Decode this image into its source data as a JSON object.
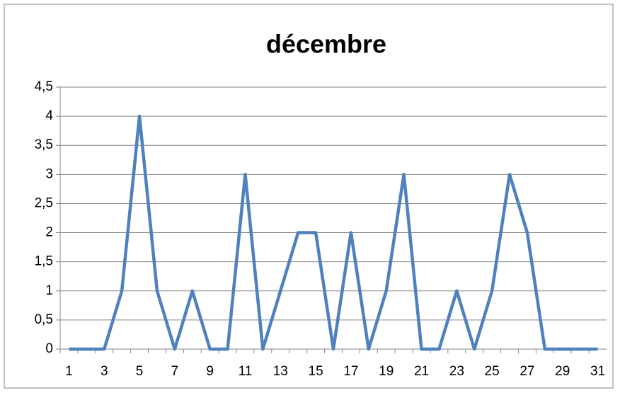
{
  "chart_data": {
    "type": "line",
    "title": "décembre",
    "categories": [
      "1",
      null,
      "3",
      null,
      "5",
      null,
      "7",
      null,
      "9",
      null,
      "11",
      null,
      "13",
      null,
      "15",
      null,
      "17",
      null,
      "19",
      null,
      "21",
      null,
      "23",
      null,
      "25",
      null,
      "27",
      null,
      "29",
      null,
      "31"
    ],
    "series": [
      {
        "name": "décembre",
        "color": "#4f81bd",
        "values": [
          0,
          0,
          0,
          1,
          4,
          1,
          0,
          1,
          0,
          0,
          3,
          0,
          1,
          2,
          2,
          0,
          2,
          0,
          1,
          3,
          0,
          0,
          1,
          0,
          1,
          3,
          2,
          0,
          0,
          0,
          0
        ]
      }
    ],
    "ylim": [
      0,
      4.5
    ],
    "yticks": [
      0,
      {
        "value": 0.5,
        "label": "0,5"
      },
      1,
      {
        "value": 1.5,
        "label": "1,5"
      },
      2,
      {
        "value": 2.5,
        "label": "2,5"
      },
      3,
      {
        "value": 3.5,
        "label": "3,5"
      },
      4,
      {
        "value": 4.5,
        "label": "4,5"
      }
    ],
    "grid": true
  }
}
